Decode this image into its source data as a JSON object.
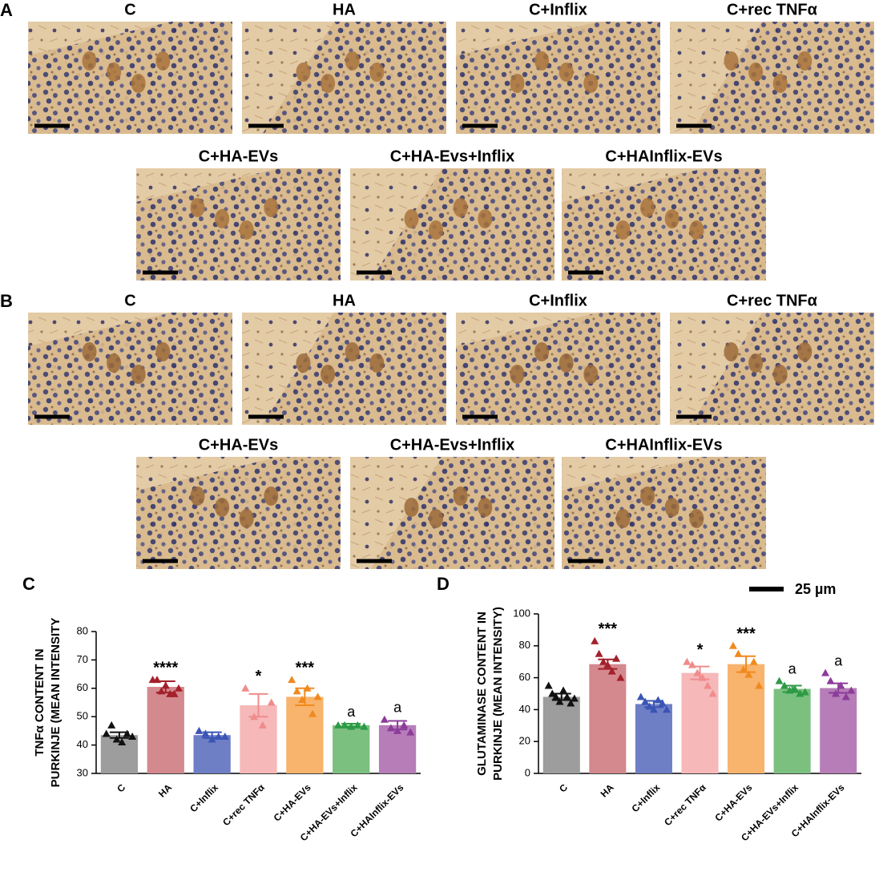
{
  "figure": {
    "panels": [
      {
        "label": "A",
        "rows": [
          [
            "C",
            "HA",
            "C+Inflix",
            "C+rec TNFα"
          ],
          [
            "C+HA-EVs",
            "C+HA-Evs+Inflix",
            "C+HAInflix-EVs"
          ]
        ]
      },
      {
        "label": "B",
        "rows": [
          [
            "C",
            "HA",
            "C+Inflix",
            "C+rec TNFα"
          ],
          [
            "C+HA-EVs",
            "C+HA-Evs+Inflix",
            "C+HAInflix-EVs"
          ]
        ]
      }
    ],
    "scale_bar": "25 µm"
  },
  "chart_data": [
    {
      "type": "bar",
      "panel": "C",
      "ylabel": [
        "TNFα CONTENT IN",
        "PURKINJE (MEAN INTENSITY"
      ],
      "categories": [
        "C",
        "HA",
        "C+Inflix",
        "C+rec TNFα",
        "C+HA-EVs",
        "C+HA-EVs+Inflix",
        "C+HAInflix-EVs"
      ],
      "values": [
        43.5,
        60.5,
        43.5,
        54,
        57,
        47,
        47
      ],
      "errors": [
        1,
        2,
        1,
        4,
        3,
        0.5,
        1.5
      ],
      "points": [
        [
          44,
          47,
          42,
          41,
          44,
          43
        ],
        [
          63,
          63,
          59,
          61,
          58,
          58,
          60
        ],
        [
          45,
          44,
          42,
          43,
          43
        ],
        [
          60,
          50,
          47,
          55
        ],
        [
          63,
          59,
          56,
          60,
          51,
          57
        ],
        [
          47,
          47,
          46.5,
          47,
          46.5
        ],
        [
          49,
          46,
          45,
          47,
          44.5
        ]
      ],
      "annotations": [
        "",
        "****",
        null,
        "*",
        "***",
        "a",
        "a"
      ],
      "colors": [
        "#9d9d9d",
        "#d4898f",
        "#6f7fc6",
        "#f6b8b8",
        "#f8b36c",
        "#7cc07f",
        "#b67db8"
      ],
      "point_colors": [
        "#111111",
        "#a3212b",
        "#3b55b5",
        "#f08c8c",
        "#f08a1e",
        "#2d9a46",
        "#8c3c99"
      ],
      "ylim": [
        30,
        80
      ],
      "yticks": [
        30,
        40,
        50,
        60,
        70,
        80
      ]
    },
    {
      "type": "bar",
      "panel": "D",
      "ylabel": [
        "GLUTAMINASE CONTENT IN",
        "PURKINJE (MEAN INTENSITY)"
      ],
      "categories": [
        "C",
        "HA",
        "C+Inflix",
        "C+rec TNFα",
        "C+HA-EVs",
        "C+HA-EVs+Inflix",
        "C+HAInflix-EVs"
      ],
      "values": [
        48,
        68.5,
        43.5,
        63,
        68.5,
        53,
        53.5
      ],
      "errors": [
        2,
        3,
        2,
        4,
        5,
        2,
        3
      ],
      "points": [
        [
          55,
          50,
          48,
          45,
          52,
          48,
          44,
          47
        ],
        [
          83,
          75,
          70,
          68,
          64,
          72,
          60
        ],
        [
          48,
          45,
          42,
          40,
          46,
          44,
          40
        ],
        [
          70,
          68,
          63,
          60,
          55,
          50
        ],
        [
          80,
          75,
          65,
          62,
          70,
          55
        ],
        [
          58,
          55,
          52,
          53,
          50,
          51
        ],
        [
          63,
          58,
          50,
          55,
          48,
          52
        ]
      ],
      "annotations": [
        null,
        "***",
        null,
        "*",
        "***",
        "a",
        "a"
      ],
      "colors": [
        "#9d9d9d",
        "#d4898f",
        "#6f7fc6",
        "#f6b8b8",
        "#f8b36c",
        "#7cc07f",
        "#b67db8"
      ],
      "point_colors": [
        "#111111",
        "#a3212b",
        "#3b55b5",
        "#f08c8c",
        "#f08a1e",
        "#2d9a46",
        "#8c3c99"
      ],
      "ylim": [
        0,
        100
      ],
      "yticks": [
        0,
        20,
        40,
        60,
        80,
        100
      ]
    }
  ]
}
